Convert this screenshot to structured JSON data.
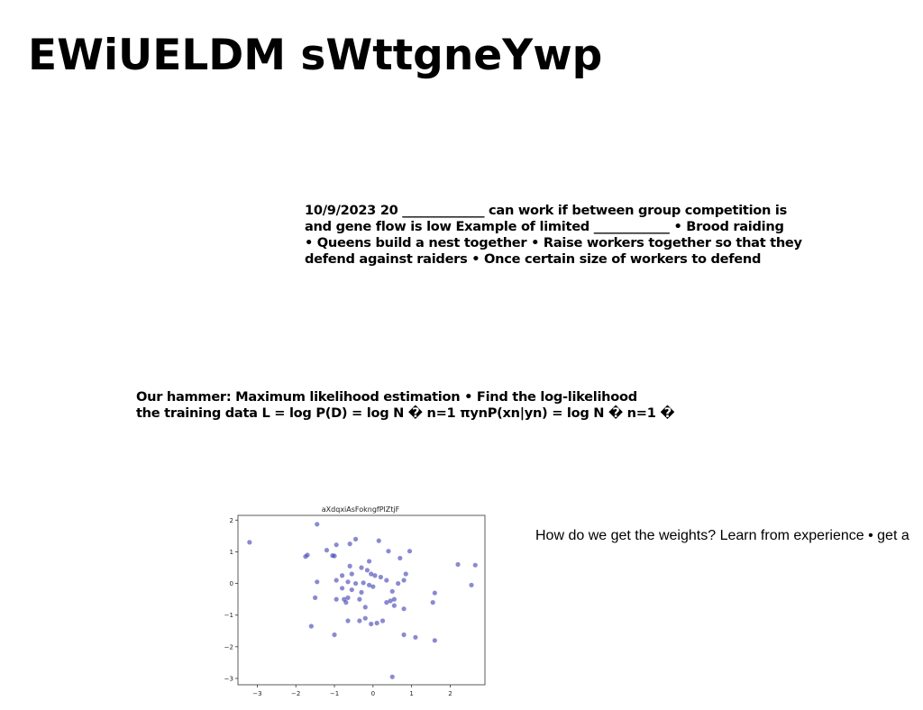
{
  "page": {
    "title": "EWiUELDM sWttgneYwp"
  },
  "text_block_1": {
    "lines": [
      "10/9/2023 20 _____________ can work if between group competition is",
      "and gene flow is low Example of limited ____________ • Brood raiding",
      "• Queens build a nest together • Raise workers together so that they",
      "defend against raiders • Once certain size of workers to defend"
    ]
  },
  "text_block_2": {
    "lines": [
      "Our hammer: Maximum likelihood estimation • Find the log-likelihood",
      "the training data L = log P(D) = log N � n=1 πynP(xn|yn) = log N � n=1 �"
    ]
  },
  "text_block_3": {
    "text": "How do we get the weights? Learn from experience • get a"
  },
  "colors": {
    "point": "#3c3cb4",
    "axis": "#333333"
  },
  "chart_data": {
    "type": "scatter",
    "title": "aXdqxiAsFokngfPlZtjF",
    "xlabel": "",
    "ylabel": "",
    "xlim": [
      -3.5,
      2.9
    ],
    "ylim": [
      -3.2,
      2.15
    ],
    "xticks": [
      -3,
      -2,
      -1,
      0,
      1,
      2
    ],
    "yticks": [
      2,
      1,
      0,
      -1,
      -2,
      -3
    ],
    "grid": false,
    "legend": "none",
    "points": [
      {
        "x": -3.2,
        "y": 1.3
      },
      {
        "x": -1.45,
        "y": 1.87
      },
      {
        "x": -1.75,
        "y": 0.85
      },
      {
        "x": -1.7,
        "y": 0.9
      },
      {
        "x": -1.2,
        "y": 1.05
      },
      {
        "x": -1.05,
        "y": 0.88
      },
      {
        "x": -1.0,
        "y": 0.87
      },
      {
        "x": -0.95,
        "y": 1.22
      },
      {
        "x": -0.6,
        "y": 1.25
      },
      {
        "x": -0.45,
        "y": 1.4
      },
      {
        "x": 0.15,
        "y": 1.35
      },
      {
        "x": 0.4,
        "y": 1.02
      },
      {
        "x": 0.95,
        "y": 1.02
      },
      {
        "x": 0.7,
        "y": 0.8
      },
      {
        "x": 2.2,
        "y": 0.6
      },
      {
        "x": 2.65,
        "y": 0.58
      },
      {
        "x": -0.1,
        "y": 0.7
      },
      {
        "x": -0.6,
        "y": 0.55
      },
      {
        "x": -0.3,
        "y": 0.5
      },
      {
        "x": -0.55,
        "y": 0.3
      },
      {
        "x": -0.8,
        "y": 0.25
      },
      {
        "x": -0.15,
        "y": 0.42
      },
      {
        "x": -0.05,
        "y": 0.3
      },
      {
        "x": 0.05,
        "y": 0.25
      },
      {
        "x": 0.2,
        "y": 0.2
      },
      {
        "x": 0.35,
        "y": 0.1
      },
      {
        "x": 0.85,
        "y": 0.3
      },
      {
        "x": 0.8,
        "y": 0.1
      },
      {
        "x": 0.65,
        "y": 0.0
      },
      {
        "x": -1.45,
        "y": 0.05
      },
      {
        "x": -0.95,
        "y": 0.1
      },
      {
        "x": -0.65,
        "y": 0.05
      },
      {
        "x": -0.45,
        "y": 0.0
      },
      {
        "x": -0.25,
        "y": 0.02
      },
      {
        "x": -0.1,
        "y": -0.05
      },
      {
        "x": 0.0,
        "y": -0.1
      },
      {
        "x": -0.8,
        "y": -0.15
      },
      {
        "x": -0.55,
        "y": -0.2
      },
      {
        "x": -0.3,
        "y": -0.28
      },
      {
        "x": 0.5,
        "y": -0.25
      },
      {
        "x": -1.5,
        "y": -0.45
      },
      {
        "x": -0.95,
        "y": -0.5
      },
      {
        "x": -0.75,
        "y": -0.5
      },
      {
        "x": -0.65,
        "y": -0.45
      },
      {
        "x": -0.35,
        "y": -0.5
      },
      {
        "x": -0.7,
        "y": -0.6
      },
      {
        "x": 0.55,
        "y": -0.5
      },
      {
        "x": 0.45,
        "y": -0.55
      },
      {
        "x": 0.35,
        "y": -0.6
      },
      {
        "x": 0.55,
        "y": -0.7
      },
      {
        "x": -0.2,
        "y": -0.75
      },
      {
        "x": 0.8,
        "y": -0.8
      },
      {
        "x": 1.6,
        "y": -0.3
      },
      {
        "x": 1.55,
        "y": -0.6
      },
      {
        "x": 2.55,
        "y": -0.05
      },
      {
        "x": -1.6,
        "y": -1.35
      },
      {
        "x": -0.65,
        "y": -1.18
      },
      {
        "x": -0.35,
        "y": -1.18
      },
      {
        "x": -0.2,
        "y": -1.1
      },
      {
        "x": -0.05,
        "y": -1.28
      },
      {
        "x": 0.1,
        "y": -1.25
      },
      {
        "x": 0.25,
        "y": -1.18
      },
      {
        "x": -1.0,
        "y": -1.62
      },
      {
        "x": 0.8,
        "y": -1.62
      },
      {
        "x": 1.1,
        "y": -1.7
      },
      {
        "x": 1.6,
        "y": -1.8
      },
      {
        "x": 0.5,
        "y": -2.95
      }
    ]
  }
}
